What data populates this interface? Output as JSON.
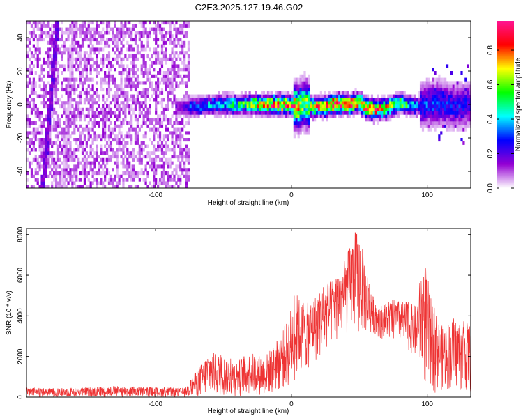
{
  "title": "C2E3.2025.127.19.46.G02",
  "chart_data": [
    {
      "type": "heatmap",
      "xlabel": "Height of straight line (km)",
      "ylabel": "Frequency (Hz)",
      "xlim": [
        -195,
        132
      ],
      "ylim": [
        -50,
        50
      ],
      "xticks": [
        -100,
        0,
        100
      ],
      "yticks": [
        -40,
        -20,
        0,
        20,
        40
      ],
      "colorbar": {
        "label": "Normalized spectral amplitude",
        "range": [
          0,
          0.97
        ],
        "ticks": [
          0.0,
          0.2,
          0.4,
          0.6,
          0.8
        ],
        "tick_labels": [
          "0.0",
          "0.2",
          "0.4",
          "0.6",
          "0.8"
        ],
        "colors": [
          "#ffffff",
          "#9400d3",
          "#0000ff",
          "#00ffff",
          "#00ff00",
          "#ffff00",
          "#ff0000",
          "#ff1493"
        ]
      },
      "noise_region": {
        "x_range": [
          -195,
          -75
        ],
        "frequency_range": [
          -50,
          50
        ],
        "amplitude_typical": 0.1
      },
      "signal_track": {
        "center_frequency": [
          [
            -85,
            -2
          ],
          [
            -70,
            -1
          ],
          [
            -50,
            0
          ],
          [
            -30,
            0
          ],
          [
            -10,
            0
          ],
          [
            0,
            0
          ],
          [
            5,
            -2
          ],
          [
            10,
            1
          ],
          [
            15,
            -2
          ],
          [
            20,
            -1
          ],
          [
            25,
            -1
          ],
          [
            30,
            0
          ],
          [
            40,
            0
          ],
          [
            50,
            1
          ],
          [
            55,
            -2
          ],
          [
            60,
            -3
          ],
          [
            70,
            -2
          ],
          [
            80,
            1
          ],
          [
            90,
            -1
          ],
          [
            100,
            0
          ],
          [
            110,
            1
          ],
          [
            120,
            -1
          ],
          [
            132,
            0
          ]
        ],
        "peak_amplitude": [
          [
            -85,
            0.15
          ],
          [
            -70,
            0.35
          ],
          [
            -50,
            0.4
          ],
          [
            -30,
            0.6
          ],
          [
            -10,
            0.85
          ],
          [
            0,
            0.8
          ],
          [
            10,
            0.6
          ],
          [
            20,
            0.8
          ],
          [
            30,
            0.9
          ],
          [
            45,
            0.9
          ],
          [
            55,
            0.8
          ],
          [
            65,
            0.85
          ],
          [
            80,
            0.6
          ],
          [
            95,
            0.3
          ],
          [
            110,
            0.3
          ],
          [
            132,
            0.25
          ]
        ],
        "line_features": [
          {
            "x_at_top": -172,
            "x_at_bottom": -183,
            "amplitude": 0.15
          },
          {
            "x_at_top": -160,
            "x_at_bottom": -168,
            "amplitude": 0.03
          }
        ]
      }
    },
    {
      "type": "line",
      "xlabel": "Height of straight line (km)",
      "ylabel": "SNR (10 * v/v)",
      "xlim": [
        -195,
        132
      ],
      "ylim": [
        0,
        8300
      ],
      "xticks": [
        -100,
        0,
        100
      ],
      "yticks": [
        0,
        2000,
        4000,
        6000,
        8000
      ],
      "series": [
        {
          "color": "#ee3333",
          "envelope_top": [
            [
              -195,
              450
            ],
            [
              -160,
              450
            ],
            [
              -130,
              550
            ],
            [
              -100,
              480
            ],
            [
              -78,
              450
            ],
            [
              -70,
              1300
            ],
            [
              -60,
              2300
            ],
            [
              -50,
              2000
            ],
            [
              -40,
              1800
            ],
            [
              -30,
              2200
            ],
            [
              -20,
              2000
            ],
            [
              -10,
              2800
            ],
            [
              -3,
              3800
            ],
            [
              3,
              5200
            ],
            [
              10,
              4500
            ],
            [
              20,
              5200
            ],
            [
              30,
              5800
            ],
            [
              40,
              6800
            ],
            [
              45,
              8000
            ],
            [
              50,
              8300
            ],
            [
              55,
              6500
            ],
            [
              60,
              5000
            ],
            [
              67,
              4500
            ],
            [
              75,
              4800
            ],
            [
              85,
              4700
            ],
            [
              92,
              4500
            ],
            [
              98,
              7500
            ],
            [
              102,
              5000
            ],
            [
              110,
              3500
            ],
            [
              120,
              3900
            ],
            [
              132,
              3600
            ]
          ],
          "envelope_bottom": [
            [
              -195,
              0
            ],
            [
              -78,
              0
            ],
            [
              -70,
              0
            ],
            [
              -40,
              0
            ],
            [
              -15,
              100
            ],
            [
              0,
              500
            ],
            [
              10,
              1200
            ],
            [
              20,
              1800
            ],
            [
              30,
              2500
            ],
            [
              40,
              3000
            ],
            [
              50,
              3000
            ],
            [
              60,
              3000
            ],
            [
              70,
              2800
            ],
            [
              80,
              2600
            ],
            [
              90,
              2000
            ],
            [
              95,
              1000
            ],
            [
              100,
              100
            ],
            [
              110,
              300
            ],
            [
              120,
              300
            ],
            [
              132,
              100
            ]
          ]
        }
      ]
    }
  ]
}
